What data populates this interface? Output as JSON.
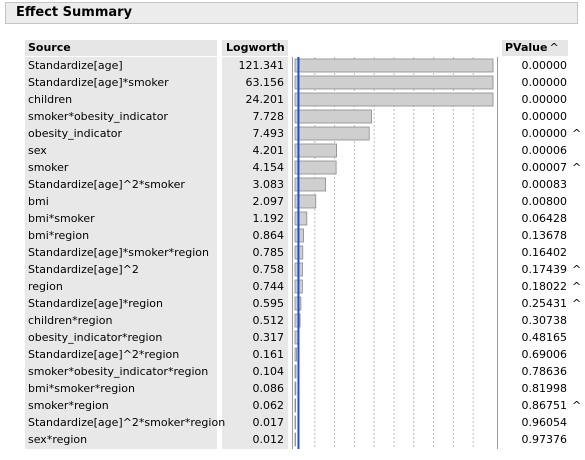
{
  "report": {
    "title": "Effect Summary"
  },
  "headers": {
    "source": "Source",
    "logworth": "Logworth",
    "pvalue": "PValue",
    "pvalue_sort": "^"
  },
  "axis": {
    "max": 20,
    "tick_step": 2,
    "bar_color": "#cfcfcf",
    "marker_color": "#1f4fd8"
  },
  "rows": [
    {
      "source": "Standardize[age]",
      "logworth": "121.341",
      "value": 121.341,
      "pvalue": "0.00000",
      "mark": ""
    },
    {
      "source": "Standardize[age]*smoker",
      "logworth": "63.156",
      "value": 63.156,
      "pvalue": "0.00000",
      "mark": ""
    },
    {
      "source": "children",
      "logworth": "24.201",
      "value": 24.201,
      "pvalue": "0.00000",
      "mark": ""
    },
    {
      "source": "smoker*obesity_indicator",
      "logworth": "7.728",
      "value": 7.728,
      "pvalue": "0.00000",
      "mark": ""
    },
    {
      "source": "obesity_indicator",
      "logworth": "7.493",
      "value": 7.493,
      "pvalue": "0.00000",
      "mark": "^"
    },
    {
      "source": "sex",
      "logworth": "4.201",
      "value": 4.201,
      "pvalue": "0.00006",
      "mark": ""
    },
    {
      "source": "smoker",
      "logworth": "4.154",
      "value": 4.154,
      "pvalue": "0.00007",
      "mark": "^"
    },
    {
      "source": "Standardize[age]^2*smoker",
      "logworth": "3.083",
      "value": 3.083,
      "pvalue": "0.00083",
      "mark": ""
    },
    {
      "source": "bmi",
      "logworth": "2.097",
      "value": 2.097,
      "pvalue": "0.00800",
      "mark": ""
    },
    {
      "source": "bmi*smoker",
      "logworth": "1.192",
      "value": 1.192,
      "pvalue": "0.06428",
      "mark": ""
    },
    {
      "source": "bmi*region",
      "logworth": "0.864",
      "value": 0.864,
      "pvalue": "0.13678",
      "mark": ""
    },
    {
      "source": "Standardize[age]*smoker*region",
      "logworth": "0.785",
      "value": 0.785,
      "pvalue": "0.16402",
      "mark": ""
    },
    {
      "source": "Standardize[age]^2",
      "logworth": "0.758",
      "value": 0.758,
      "pvalue": "0.17439",
      "mark": "^"
    },
    {
      "source": "region",
      "logworth": "0.744",
      "value": 0.744,
      "pvalue": "0.18022",
      "mark": "^"
    },
    {
      "source": "Standardize[age]*region",
      "logworth": "0.595",
      "value": 0.595,
      "pvalue": "0.25431",
      "mark": "^"
    },
    {
      "source": "children*region",
      "logworth": "0.512",
      "value": 0.512,
      "pvalue": "0.30738",
      "mark": ""
    },
    {
      "source": "obesity_indicator*region",
      "logworth": "0.317",
      "value": 0.317,
      "pvalue": "0.48165",
      "mark": ""
    },
    {
      "source": "Standardize[age]^2*region",
      "logworth": "0.161",
      "value": 0.161,
      "pvalue": "0.69006",
      "mark": ""
    },
    {
      "source": "smoker*obesity_indicator*region",
      "logworth": "0.104",
      "value": 0.104,
      "pvalue": "0.78636",
      "mark": ""
    },
    {
      "source": "bmi*smoker*region",
      "logworth": "0.086",
      "value": 0.086,
      "pvalue": "0.81998",
      "mark": ""
    },
    {
      "source": "smoker*region",
      "logworth": "0.062",
      "value": 0.062,
      "pvalue": "0.86751",
      "mark": "^"
    },
    {
      "source": "Standardize[age]^2*smoker*region",
      "logworth": "0.017",
      "value": 0.017,
      "pvalue": "0.96054",
      "mark": ""
    },
    {
      "source": "sex*region",
      "logworth": "0.012",
      "value": 0.012,
      "pvalue": "0.97376",
      "mark": ""
    }
  ]
}
